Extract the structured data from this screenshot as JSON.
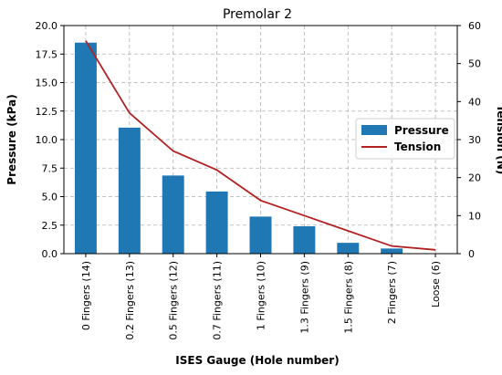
{
  "chart_data": {
    "type": "bar",
    "title": "Premolar 2",
    "xlabel": "ISES Gauge (Hole number)",
    "ylabel": "Pressure (kPa)",
    "y2label": "Tension (N)",
    "categories": [
      "0 Fingers (14)",
      "0.2 Fingers (13)",
      "0.5 Fingers (12)",
      "0.7 Fingers (11)",
      "1 Fingers (10)",
      "1.3 Fingers (9)",
      "1.5 Fingers (8)",
      "2 Fingers (7)",
      "Loose (6)"
    ],
    "ylim": [
      0,
      20
    ],
    "y2lim": [
      0,
      60
    ],
    "yticks": [
      "0.0",
      "2.5",
      "5.0",
      "7.5",
      "10.0",
      "12.5",
      "15.0",
      "17.5",
      "20.0"
    ],
    "ytick_values": [
      0,
      2.5,
      5,
      7.5,
      10,
      12.5,
      15,
      17.5,
      20
    ],
    "y2ticks": [
      "0",
      "10",
      "20",
      "30",
      "40",
      "50",
      "60"
    ],
    "y2tick_values": [
      0,
      10,
      20,
      30,
      40,
      50,
      60
    ],
    "grid": true,
    "legend_position": "center-right",
    "series": [
      {
        "name": "Pressure",
        "type": "bar",
        "axis": "left",
        "color": "#1f77b4",
        "values": [
          18.5,
          11.05,
          6.85,
          5.45,
          3.25,
          2.4,
          0.95,
          0.45,
          0.0
        ]
      },
      {
        "name": "Tension",
        "type": "line",
        "axis": "right",
        "color": "#b22222",
        "values": [
          56,
          37,
          27,
          22,
          14,
          10,
          6,
          2,
          1
        ]
      }
    ]
  }
}
